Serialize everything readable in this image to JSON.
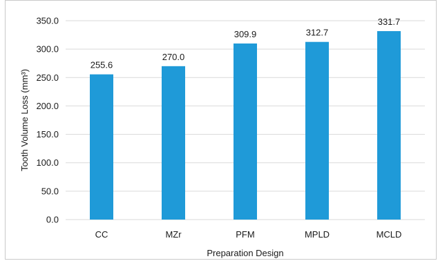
{
  "chart_data": {
    "type": "bar",
    "categories": [
      "CC",
      "MZr",
      "PFM",
      "MPLD",
      "MCLD"
    ],
    "values": [
      255.6,
      270.0,
      309.9,
      312.7,
      331.7
    ],
    "data_labels": [
      "255.6",
      "270.0",
      "309.9",
      "312.7",
      "331.7"
    ],
    "title": "",
    "xlabel": "Preparation Design",
    "ylabel": "Tooth Volume Loss (mm³)",
    "ylim": [
      0,
      350
    ],
    "yticks": [
      "0.0",
      "50.0",
      "100.0",
      "150.0",
      "200.0",
      "250.0",
      "300.0",
      "350.0"
    ],
    "bar_color": "#1f9ad8",
    "grid_color": "#d9d9d9",
    "grid": true,
    "legend": "none"
  }
}
